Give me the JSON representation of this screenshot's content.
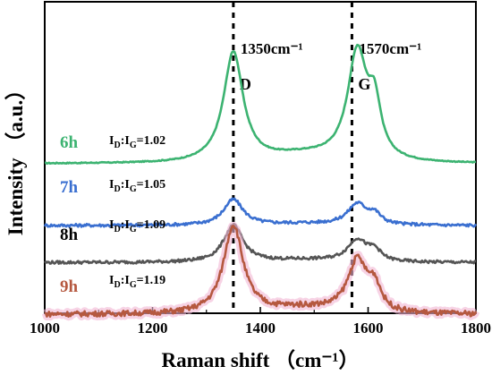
{
  "chart_data": {
    "type": "line",
    "xlabel": "Raman shift （cm⁻¹）",
    "ylabel": "Intensity （a.u.）",
    "xlim": [
      1000,
      1800
    ],
    "xticks": [
      "1000",
      "1200",
      "1400",
      "1600",
      "1800"
    ],
    "reference_lines": [
      {
        "x": 1350,
        "text": "1350cm⁻¹",
        "peak": "D"
      },
      {
        "x": 1570,
        "text": "1570cm⁻¹",
        "peak": "G"
      }
    ],
    "series": [
      {
        "name": "6h",
        "ratio_main": "I",
        "ratio_d": "D",
        "ratio_colon": ":I",
        "ratio_g": "G",
        "ratio_value": "=1.02",
        "color": "#3cb371",
        "baseline": 1.0,
        "d_height": 0.9,
        "g_height": 0.88
      },
      {
        "name": "7h",
        "ratio_main": "I",
        "ratio_d": "D",
        "ratio_colon": ":I",
        "ratio_g": "G",
        "ratio_value": "=1.05",
        "color": "#3a6fd0",
        "baseline": 0.5,
        "d_height": 0.21,
        "g_height": 0.17
      },
      {
        "name": "8h",
        "ratio_main": "I",
        "ratio_d": "D",
        "ratio_colon": ":I",
        "ratio_g": "G",
        "ratio_value": "=1.09",
        "color": "#555555",
        "baseline": 0.2,
        "d_height": 0.3,
        "g_height": 0.18
      },
      {
        "name": "9h",
        "ratio_main": "I",
        "ratio_d": "D",
        "ratio_colon": ":I",
        "ratio_g": "G",
        "ratio_value": "=1.19",
        "color": "#b5583f",
        "baseline": -0.22,
        "d_height": 0.72,
        "g_height": 0.42
      }
    ]
  }
}
